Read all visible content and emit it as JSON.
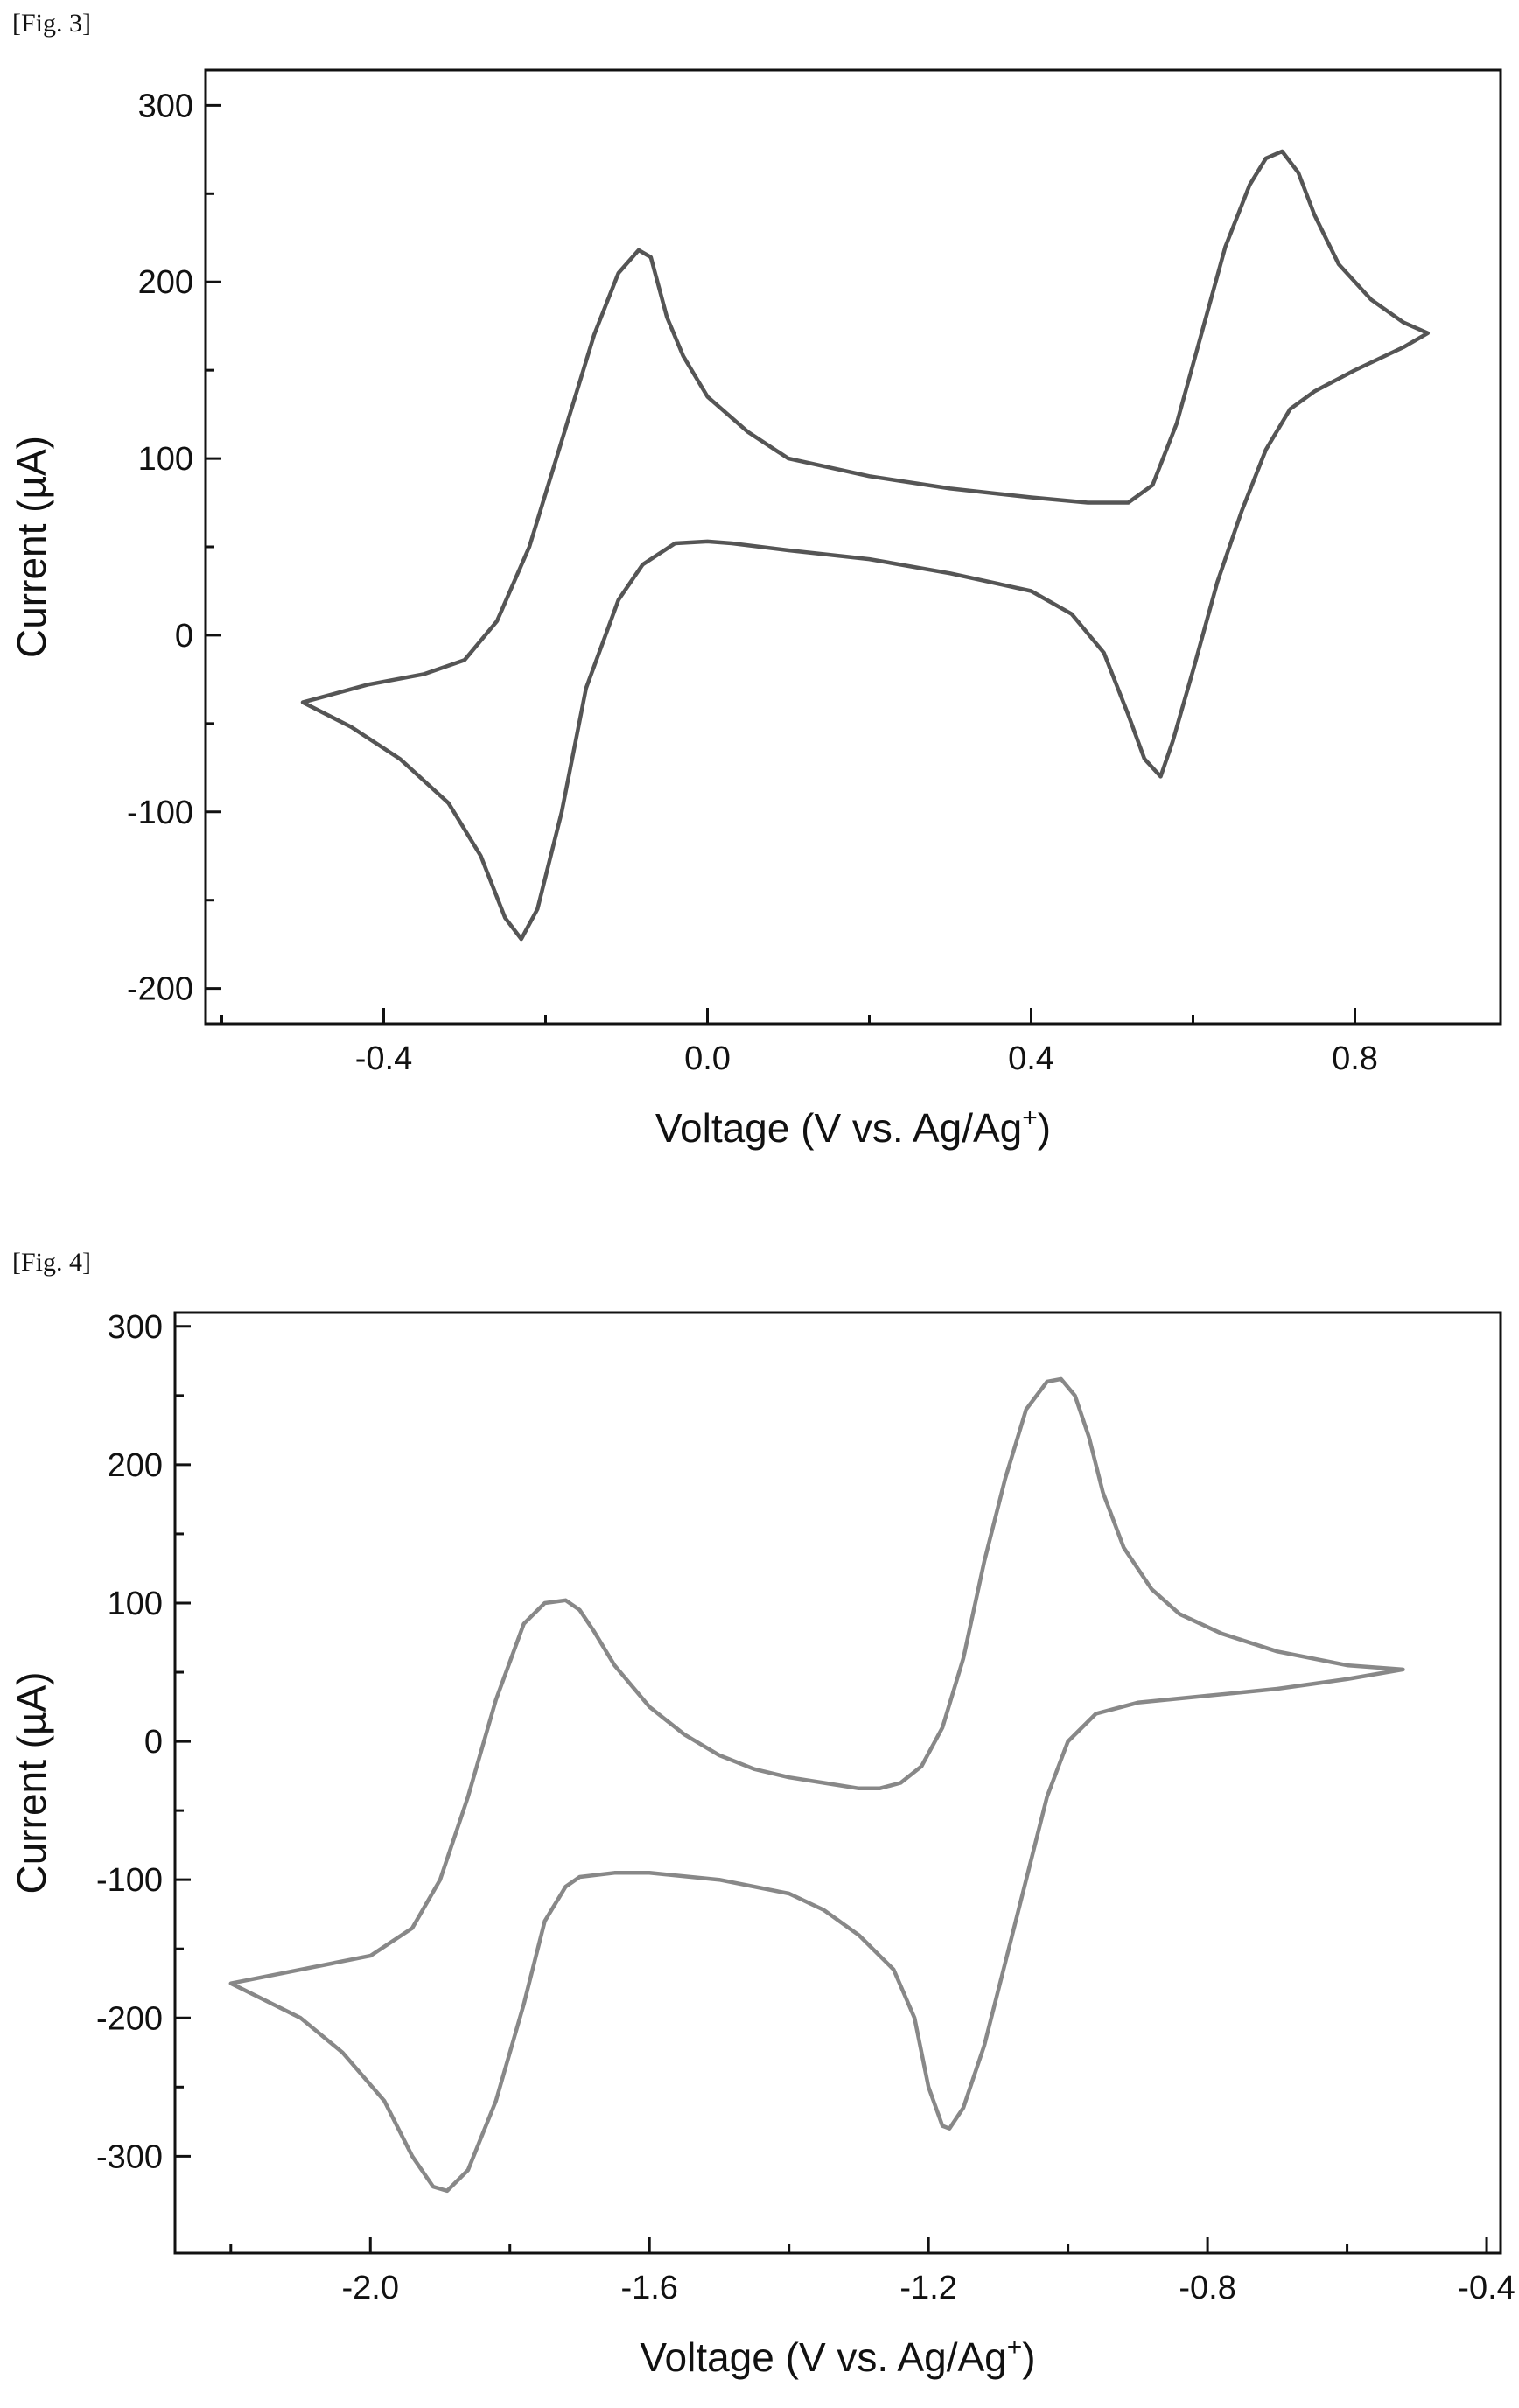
{
  "figures": [
    {
      "caption": "[Fig. 3]"
    },
    {
      "caption": "[Fig. 4]"
    }
  ],
  "chart_data": [
    {
      "type": "line",
      "title": "",
      "xlabel": "Voltage (V vs. Ag/Ag",
      "xlabel_sup": "+",
      "xlabel_suffix": ")",
      "ylabel": "Current (µA)",
      "xlim": [
        -0.62,
        0.98
      ],
      "ylim": [
        -220,
        320
      ],
      "xticks": [
        -0.4,
        0.0,
        0.4,
        0.8
      ],
      "xtick_labels": [
        "-0.4",
        "0.0",
        "0.4",
        "0.8"
      ],
      "yticks": [
        -200,
        -100,
        0,
        100,
        200,
        300
      ],
      "ytick_labels": [
        "-200",
        "-100",
        "0",
        "100",
        "200",
        "300"
      ],
      "grid": false,
      "line_color": "#555555",
      "series": [
        {
          "x": [
            -0.5,
            -0.42,
            -0.35,
            -0.3,
            -0.26,
            -0.22,
            -0.18,
            -0.14,
            -0.11,
            -0.085,
            -0.07,
            -0.05,
            -0.03,
            0.0,
            0.05,
            0.1,
            0.2,
            0.3,
            0.4,
            0.47,
            0.52,
            0.55,
            0.58,
            0.61,
            0.64,
            0.67,
            0.69,
            0.71,
            0.73,
            0.75,
            0.78,
            0.82,
            0.86,
            0.89,
            0.86,
            0.8,
            0.75,
            0.72,
            0.69,
            0.66,
            0.63,
            0.6,
            0.575,
            0.56,
            0.54,
            0.52,
            0.49,
            0.45,
            0.4,
            0.3,
            0.2,
            0.1,
            0.03,
            0.0,
            -0.04,
            -0.08,
            -0.11,
            -0.15,
            -0.18,
            -0.21,
            -0.23,
            -0.25,
            -0.28,
            -0.32,
            -0.38,
            -0.44,
            -0.5
          ],
          "y": [
            -38,
            -28,
            -22,
            -14,
            8,
            50,
            110,
            170,
            205,
            218,
            214,
            180,
            158,
            135,
            115,
            100,
            90,
            83,
            78,
            75,
            75,
            85,
            120,
            170,
            220,
            255,
            270,
            274,
            262,
            238,
            210,
            190,
            177,
            171,
            163,
            150,
            138,
            128,
            105,
            70,
            30,
            -20,
            -60,
            -80,
            -70,
            -45,
            -10,
            12,
            25,
            35,
            43,
            48,
            52,
            53,
            52,
            40,
            20,
            -30,
            -100,
            -155,
            -172,
            -160,
            -125,
            -95,
            -70,
            -52,
            -38
          ]
        }
      ]
    },
    {
      "type": "line",
      "title": "",
      "xlabel": "Voltage (V vs. Ag/Ag",
      "xlabel_sup": "+",
      "xlabel_suffix": ")",
      "ylabel": "Current (µA)",
      "xlim": [
        -2.28,
        -0.38
      ],
      "ylim": [
        -370,
        310
      ],
      "xticks": [
        -2.0,
        -1.6,
        -1.2,
        -0.8,
        -0.4
      ],
      "xtick_labels": [
        "-2.0",
        "-1.6",
        "-1.2",
        "-0.8",
        "-0.4"
      ],
      "yticks": [
        -300,
        -200,
        -100,
        0,
        100,
        200,
        300
      ],
      "ytick_labels": [
        "-300",
        "-200",
        "-100",
        "0",
        "100",
        "200",
        "300"
      ],
      "grid": false,
      "line_color": "#888888",
      "series": [
        {
          "x": [
            -2.2,
            -2.1,
            -2.0,
            -1.94,
            -1.9,
            -1.86,
            -1.82,
            -1.78,
            -1.75,
            -1.72,
            -1.7,
            -1.68,
            -1.65,
            -1.6,
            -1.55,
            -1.5,
            -1.45,
            -1.4,
            -1.35,
            -1.3,
            -1.27,
            -1.24,
            -1.21,
            -1.18,
            -1.15,
            -1.12,
            -1.09,
            -1.06,
            -1.03,
            -1.01,
            -0.99,
            -0.97,
            -0.95,
            -0.92,
            -0.88,
            -0.84,
            -0.78,
            -0.7,
            -0.6,
            -0.52,
            -0.6,
            -0.7,
            -0.8,
            -0.9,
            -0.96,
            -1.0,
            -1.03,
            -1.06,
            -1.09,
            -1.12,
            -1.15,
            -1.17,
            -1.18,
            -1.2,
            -1.22,
            -1.25,
            -1.3,
            -1.35,
            -1.4,
            -1.5,
            -1.6,
            -1.65,
            -1.7,
            -1.72,
            -1.75,
            -1.78,
            -1.82,
            -1.86,
            -1.89,
            -1.91,
            -1.94,
            -1.98,
            -2.04,
            -2.1,
            -2.2
          ],
          "y": [
            -175,
            -165,
            -155,
            -135,
            -100,
            -40,
            30,
            85,
            100,
            102,
            95,
            80,
            55,
            25,
            5,
            -10,
            -20,
            -26,
            -30,
            -34,
            -34,
            -30,
            -18,
            10,
            60,
            130,
            190,
            240,
            260,
            262,
            250,
            220,
            180,
            140,
            110,
            92,
            78,
            65,
            55,
            52,
            45,
            38,
            33,
            28,
            20,
            0,
            -40,
            -100,
            -160,
            -220,
            -265,
            -280,
            -278,
            -250,
            -200,
            -165,
            -140,
            -122,
            -110,
            -100,
            -95,
            -95,
            -98,
            -105,
            -130,
            -190,
            -260,
            -310,
            -325,
            -322,
            -300,
            -260,
            -225,
            -200,
            -175
          ]
        }
      ]
    }
  ]
}
